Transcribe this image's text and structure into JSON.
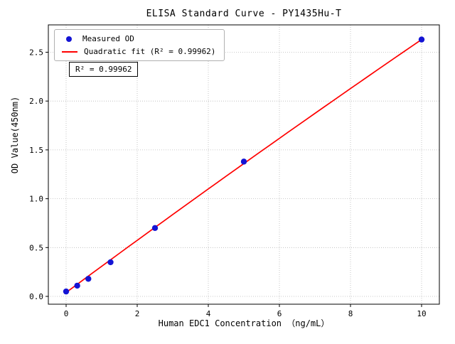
{
  "chart_data": {
    "type": "scatter",
    "title": "ELISA Standard Curve - PY1435Hu-T",
    "xlabel": "Human EDC1 Concentration （ng/mL）",
    "ylabel": "OD Value(450nm)",
    "xlim": [
      -0.5,
      10.5
    ],
    "ylim": [
      -0.08,
      2.78
    ],
    "xticks": [
      0,
      2,
      4,
      6,
      8,
      10
    ],
    "yticks": [
      0.0,
      0.5,
      1.0,
      1.5,
      2.0,
      2.5
    ],
    "grid": true,
    "legend_position": "upper-left",
    "series": [
      {
        "name": "Measured OD",
        "type": "scatter",
        "color": "#1414d4",
        "x": [
          0,
          0.3125,
          0.625,
          1.25,
          2.5,
          5,
          10
        ],
        "y": [
          0.05,
          0.11,
          0.18,
          0.35,
          0.7,
          1.38,
          2.63
        ]
      },
      {
        "name": "Quadratic fit (R² = 0.99962)",
        "type": "line",
        "color": "#ff0000",
        "fit": {
          "a": -0.001,
          "b": 0.269,
          "c": 0.04,
          "x_range": [
            0,
            10
          ]
        }
      }
    ],
    "annotation": "R² = 0.99962",
    "r_squared": "0.99962"
  }
}
